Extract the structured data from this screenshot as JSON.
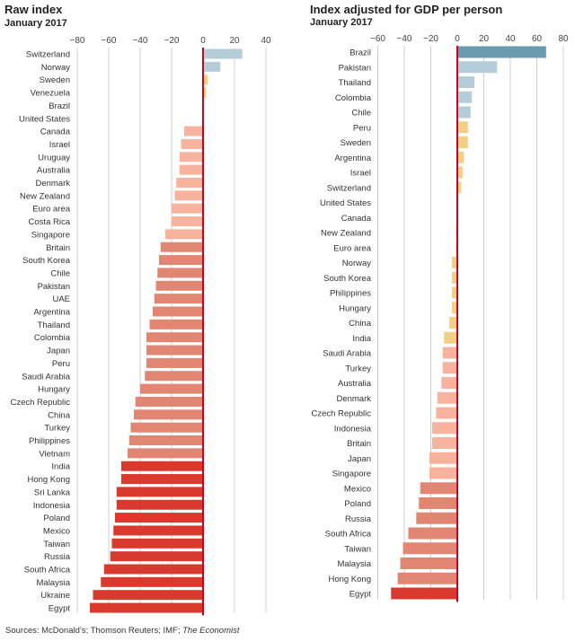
{
  "chart_data": [
    {
      "type": "bar",
      "orientation": "horizontal",
      "title": "Raw index",
      "subtitle": "January 2017",
      "xlim": [
        -80,
        40
      ],
      "xticks": [
        -80,
        -60,
        -40,
        -20,
        0,
        20,
        40
      ],
      "tick_labels": [
        "−80",
        "−60",
        "−40",
        "−20",
        "0",
        "20",
        "40"
      ],
      "categories": [
        "Switzerland",
        "Norway",
        "Sweden",
        "Venezuela",
        "Brazil",
        "United States",
        "Canada",
        "Israel",
        "Uruguay",
        "Australia",
        "Denmark",
        "New Zealand",
        "Euro area",
        "Costa Rica",
        "Singapore",
        "Britain",
        "South Korea",
        "Chile",
        "Pakistan",
        "UAE",
        "Argentina",
        "Thailand",
        "Colombia",
        "Japan",
        "Peru",
        "Saudi Arabia",
        "Hungary",
        "Czech Republic",
        "China",
        "Turkey",
        "Philippines",
        "Vietnam",
        "India",
        "Hong Kong",
        "Sri Lanka",
        "Indonesia",
        "Poland",
        "Mexico",
        "Taiwan",
        "Russia",
        "South Africa",
        "Malaysia",
        "Ukraine",
        "Egypt"
      ],
      "values": [
        25,
        11,
        3,
        2,
        0,
        0,
        -12,
        -14,
        -15,
        -15,
        -17,
        -18,
        -20,
        -20,
        -24,
        -27,
        -28,
        -29,
        -30,
        -31,
        -32,
        -34,
        -36,
        -36,
        -36,
        -37,
        -40,
        -43,
        -44,
        -46,
        -47,
        -48,
        -52,
        -52,
        -55,
        -55,
        -56,
        -57,
        -58,
        -59,
        -63,
        -65,
        -70,
        -72
      ]
    },
    {
      "type": "bar",
      "orientation": "horizontal",
      "title": "Index adjusted for GDP per person",
      "subtitle": "January 2017",
      "xlim": [
        -60,
        80
      ],
      "xticks": [
        -60,
        -40,
        -20,
        0,
        20,
        40,
        60,
        80
      ],
      "tick_labels": [
        "−60",
        "−40",
        "−20",
        "0",
        "20",
        "40",
        "60",
        "80"
      ],
      "categories": [
        "Brazil",
        "Pakistan",
        "Thailand",
        "Colombia",
        "Chile",
        "Peru",
        "Sweden",
        "Argentina",
        "Israel",
        "Switzerland",
        "United States",
        "Canada",
        "New Zealand",
        "Euro area",
        "Norway",
        "South Korea",
        "Philippines",
        "Hungary",
        "China",
        "India",
        "Saudi Arabia",
        "Turkey",
        "Australia",
        "Denmark",
        "Czech Republic",
        "Indonesia",
        "Britain",
        "Japan",
        "Singapore",
        "Mexico",
        "Poland",
        "Russia",
        "South Africa",
        "Taiwan",
        "Malaysia",
        "Hong Kong",
        "Egypt"
      ],
      "values": [
        67,
        30,
        13,
        11,
        10,
        8,
        8,
        5,
        4,
        3,
        0,
        0,
        -1,
        -1,
        -4,
        -4,
        -4,
        -4,
        -6,
        -10,
        -11,
        -11,
        -12,
        -15,
        -16,
        -19,
        -19,
        -21,
        -21,
        -28,
        -29,
        -31,
        -37,
        -41,
        -43,
        -45,
        -50
      ]
    }
  ],
  "colors": {
    "positive_dark": "#6a9cb0",
    "positive_light": "#b5ccd9",
    "near_zero": "#f1cf84",
    "negative_light": "#f7b39d",
    "negative_mid": "#e08673",
    "negative_dark": "#d93a2d",
    "zero_line": "#d0021b"
  },
  "footer": {
    "sources_prefix": "Sources: McDonald’s; Thomson Reuters; IMF; ",
    "sources_italic": "The Economist"
  }
}
